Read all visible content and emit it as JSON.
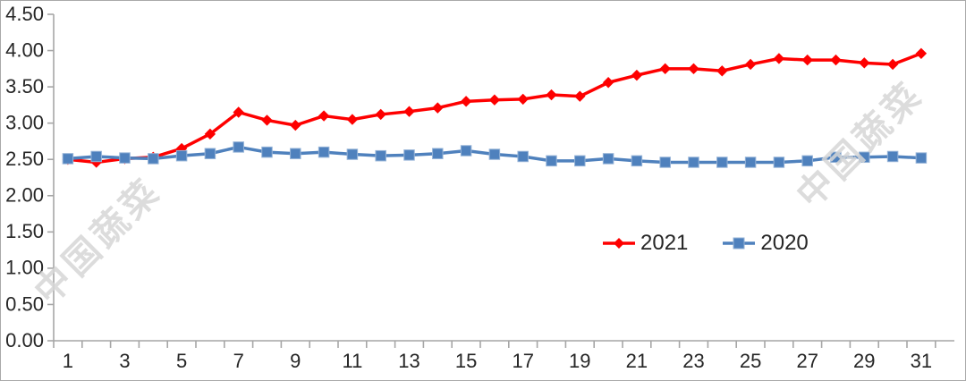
{
  "chart_data": {
    "type": "line",
    "x": [
      1,
      2,
      3,
      4,
      5,
      6,
      7,
      8,
      9,
      10,
      11,
      12,
      13,
      14,
      15,
      16,
      17,
      18,
      19,
      20,
      21,
      22,
      23,
      24,
      25,
      26,
      27,
      28,
      29,
      30,
      31
    ],
    "x_tick_labels_shown": [
      "1",
      "3",
      "5",
      "7",
      "9",
      "11",
      "13",
      "15",
      "17",
      "19",
      "21",
      "23",
      "25",
      "27",
      "29",
      "31"
    ],
    "series": [
      {
        "name": "2021",
        "color": "#fe0000",
        "marker": "diamond",
        "values": [
          2.5,
          2.46,
          2.51,
          2.53,
          2.65,
          2.85,
          3.15,
          3.04,
          2.97,
          3.1,
          3.05,
          3.12,
          3.16,
          3.21,
          3.3,
          3.32,
          3.33,
          3.39,
          3.37,
          3.56,
          3.66,
          3.75,
          3.75,
          3.72,
          3.81,
          3.89,
          3.87,
          3.87,
          3.83,
          3.81,
          3.96
        ]
      },
      {
        "name": "2020",
        "color": "#4f81bd",
        "marker": "square",
        "values": [
          2.51,
          2.54,
          2.52,
          2.51,
          2.55,
          2.58,
          2.67,
          2.6,
          2.58,
          2.6,
          2.57,
          2.55,
          2.56,
          2.58,
          2.62,
          2.57,
          2.54,
          2.48,
          2.48,
          2.51,
          2.48,
          2.46,
          2.46,
          2.46,
          2.46,
          2.46,
          2.48,
          2.53,
          2.53,
          2.54,
          2.52
        ]
      }
    ],
    "ylim": [
      0,
      4.5
    ],
    "ytick_step": 0.5,
    "y_tick_labels": [
      "0.00",
      "0.50",
      "1.00",
      "1.50",
      "2.00",
      "2.50",
      "3.00",
      "3.50",
      "4.00",
      "4.50"
    ],
    "title": "",
    "xlabel": "",
    "ylabel": "",
    "grid": "off",
    "legend_position": "inside-center-right"
  },
  "watermarks": [
    {
      "text": "中国蔬菜"
    },
    {
      "text": "中国蔬菜"
    }
  ],
  "colors": {
    "axis": "#a6a6a6",
    "tick": "#a6a6a6",
    "label": "#262626",
    "background": "#ffffff",
    "border": "#a9a9a9",
    "watermark": "#d7d7d7",
    "series_2021": "#fe0000",
    "series_2020": "#4f81bd"
  }
}
